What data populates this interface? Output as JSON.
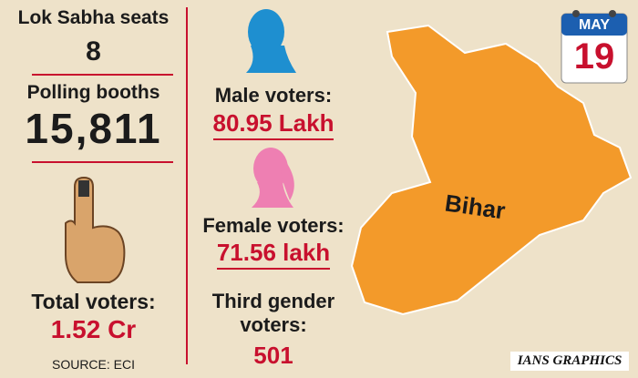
{
  "left": {
    "seats_label": "Lok Sabha seats",
    "seats_value": "8",
    "booths_label": "Polling booths",
    "booths_value": "15,811",
    "total_label": "Total voters:",
    "total_value": "1.52 Cr",
    "source": "SOURCE: ECI"
  },
  "middle": {
    "male_label": "Male voters:",
    "male_value": "80.95 Lakh",
    "female_label": "Female voters:",
    "female_value": "71.56 lakh",
    "third_label_line1": "Third gender",
    "third_label_line2": "voters:",
    "third_value": "501"
  },
  "calendar": {
    "month": "MAY",
    "day": "19"
  },
  "map": {
    "label": "Bihar"
  },
  "credit": "IANS GRAPHICS"
}
